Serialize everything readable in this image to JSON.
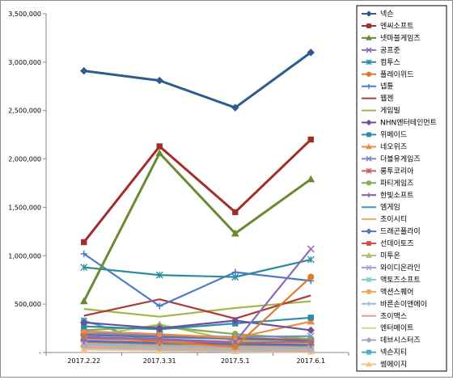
{
  "chart_data": {
    "type": "line",
    "title": "",
    "xlabel": "",
    "ylabel": "",
    "ylim": [
      0,
      3500000
    ],
    "yticks": [
      0,
      500000,
      1000000,
      1500000,
      2000000,
      2500000,
      3000000,
      3500000
    ],
    "ytick_labels": [
      "-",
      "500,000",
      "1,000,000",
      "1,500,000",
      "2,000,000",
      "2,500,000",
      "3,000,000",
      "3,500,000"
    ],
    "categories": [
      "2017.2.22",
      "2017.3.31",
      "2017.5.1",
      "2017.6.1"
    ],
    "grid": false,
    "legend_position": "right",
    "series": [
      {
        "name": "넥슨",
        "color": "#2e5b8e",
        "marker": "diamond",
        "values": [
          2910000,
          2810000,
          2530000,
          3100000
        ]
      },
      {
        "name": "엔씨소프트",
        "color": "#a32c2c",
        "marker": "square",
        "values": [
          1140000,
          2130000,
          1450000,
          2200000
        ]
      },
      {
        "name": "넷마블게임즈",
        "color": "#6a8a2e",
        "marker": "triangle",
        "values": [
          530000,
          2060000,
          1230000,
          1790000
        ]
      },
      {
        "name": "공프준",
        "color": "#8a6bb8",
        "marker": "x",
        "values": [
          160000,
          140000,
          110000,
          1070000
        ]
      },
      {
        "name": "컴투스",
        "color": "#2b8c9e",
        "marker": "star",
        "values": [
          880000,
          800000,
          780000,
          960000
        ]
      },
      {
        "name": "플레이위드",
        "color": "#e07b2c",
        "marker": "circle",
        "values": [
          170000,
          110000,
          60000,
          780000
        ]
      },
      {
        "name": "넵튠",
        "color": "#4d7bc7",
        "marker": "plus",
        "values": [
          1020000,
          480000,
          830000,
          740000
        ]
      },
      {
        "name": "웹젠",
        "color": "#b03a3a",
        "marker": "none",
        "values": [
          380000,
          550000,
          350000,
          590000
        ]
      },
      {
        "name": "게임빌",
        "color": "#9bb84d",
        "marker": "none",
        "values": [
          450000,
          370000,
          460000,
          530000
        ]
      },
      {
        "name": "NHN엔터테인먼트",
        "color": "#6d4f9a",
        "marker": "diamond",
        "values": [
          310000,
          250000,
          330000,
          230000
        ]
      },
      {
        "name": "위메이드",
        "color": "#2d8ba8",
        "marker": "square",
        "values": [
          270000,
          240000,
          300000,
          360000
        ]
      },
      {
        "name": "네오위즈",
        "color": "#f08a3c",
        "marker": "triangle",
        "values": [
          220000,
          190000,
          150000,
          320000
        ]
      },
      {
        "name": "더블유게임즈",
        "color": "#6f8fc9",
        "marker": "x",
        "values": [
          200000,
          180000,
          160000,
          170000
        ]
      },
      {
        "name": "룽투코리아",
        "color": "#c46060",
        "marker": "star",
        "values": [
          150000,
          130000,
          100000,
          110000
        ]
      },
      {
        "name": "파티게임즈",
        "color": "#8cab4e",
        "marker": "circle",
        "values": [
          230000,
          270000,
          190000,
          140000
        ]
      },
      {
        "name": "한빛소프트",
        "color": "#7a5fa8",
        "marker": "plus",
        "values": [
          120000,
          100000,
          90000,
          80000
        ]
      },
      {
        "name": "엠게임",
        "color": "#3a9cb5",
        "marker": "none",
        "values": [
          110000,
          90000,
          80000,
          70000
        ]
      },
      {
        "name": "조이시티",
        "color": "#f2a65a",
        "marker": "none",
        "values": [
          100000,
          80000,
          70000,
          60000
        ]
      },
      {
        "name": "드래곤플라이",
        "color": "#5577aa",
        "marker": "diamond",
        "values": [
          180000,
          160000,
          140000,
          120000
        ]
      },
      {
        "name": "선데이토즈",
        "color": "#d05050",
        "marker": "square",
        "values": [
          190000,
          170000,
          150000,
          130000
        ]
      },
      {
        "name": "미투온",
        "color": "#a8c070",
        "marker": "triangle",
        "values": [
          160000,
          290000,
          120000,
          100000
        ]
      },
      {
        "name": "와이디온라인",
        "color": "#b39ddb",
        "marker": "x",
        "values": [
          90000,
          70000,
          60000,
          50000
        ]
      },
      {
        "name": "액토즈소프트",
        "color": "#80cbc4",
        "marker": "star",
        "values": [
          80000,
          60000,
          50000,
          40000
        ]
      },
      {
        "name": "액션스퀘어",
        "color": "#f4a460",
        "marker": "circle",
        "values": [
          70000,
          50000,
          40000,
          30000
        ]
      },
      {
        "name": "바른손이앤에이",
        "color": "#9fb6e0",
        "marker": "plus",
        "values": [
          60000,
          40000,
          30000,
          20000
        ]
      },
      {
        "name": "조이맥스",
        "color": "#e8a0a0",
        "marker": "none",
        "values": [
          50000,
          30000,
          20000,
          10000
        ]
      },
      {
        "name": "엔터메이트",
        "color": "#c6dc9a",
        "marker": "none",
        "values": [
          40000,
          20000,
          10000,
          5000
        ]
      },
      {
        "name": "데브시스터즈",
        "color": "#b0a0d0",
        "marker": "diamond",
        "values": [
          140000,
          120000,
          110000,
          100000
        ]
      },
      {
        "name": "넥슨지티",
        "color": "#4bacc6",
        "marker": "square",
        "values": [
          330000,
          80000,
          60000,
          50000
        ]
      },
      {
        "name": "썸에이지",
        "color": "#f9c08a",
        "marker": "triangle",
        "values": [
          30000,
          20000,
          15000,
          10000
        ]
      }
    ]
  }
}
